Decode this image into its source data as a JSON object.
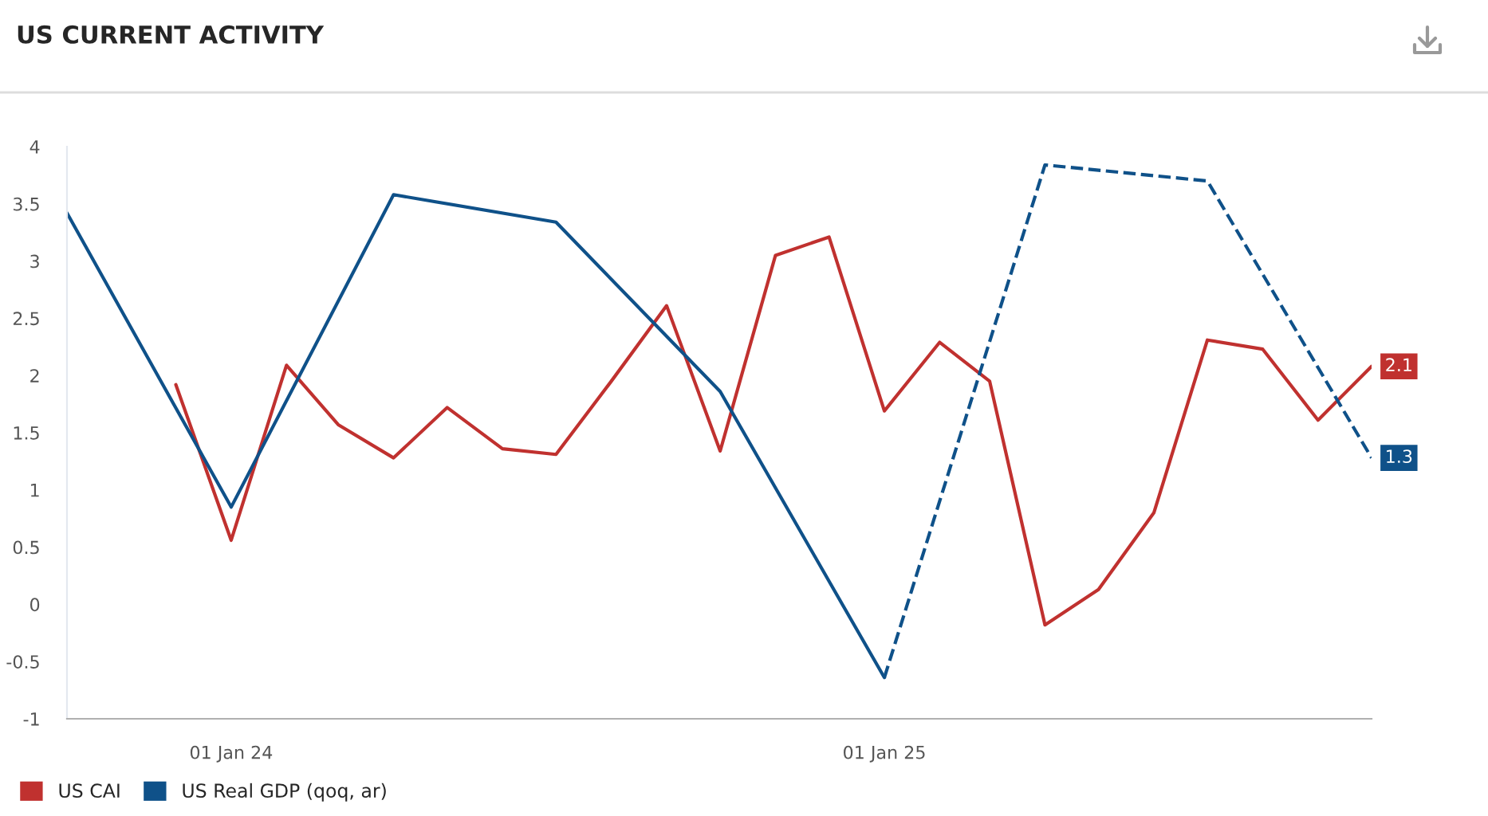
{
  "chart_data": {
    "type": "line",
    "title": "US CURRENT ACTIVITY",
    "series": [
      {
        "name": "US CAI",
        "color": "#c0312f",
        "line_style": "solid",
        "x": [
          "2023-12-01",
          "2024-01-01",
          "2024-02-01",
          "2024-03-01",
          "2024-04-01",
          "2024-05-01",
          "2024-06-01",
          "2024-07-01",
          "2024-08-01",
          "2024-09-01",
          "2024-10-01",
          "2024-11-01",
          "2024-12-01",
          "2025-01-01",
          "2025-02-01",
          "2025-03-01",
          "2025-04-01",
          "2025-05-01",
          "2025-06-01",
          "2025-07-01",
          "2025-08-01",
          "2025-09-01",
          "2025-10-01"
        ],
        "values": [
          1.92,
          0.56,
          2.09,
          1.57,
          1.28,
          1.72,
          1.36,
          1.31,
          1.95,
          2.61,
          1.34,
          3.05,
          3.21,
          1.69,
          2.29,
          1.95,
          -0.18,
          0.13,
          0.8,
          2.31,
          2.23,
          1.61,
          2.08
        ],
        "value_labels": [
          null,
          null,
          null,
          null,
          null,
          null,
          null,
          null,
          null,
          null,
          null,
          null,
          null,
          null,
          null,
          null,
          null,
          null,
          null,
          null,
          null,
          null,
          "2.1"
        ]
      },
      {
        "name": "US Real GDP (qoq, ar)",
        "color": "#0f5189",
        "line_style": "solid",
        "x": [
          "2023-10-01",
          "2024-01-01",
          "2024-04-01",
          "2024-07-01",
          "2024-10-01",
          "2025-01-01"
        ],
        "values": [
          3.42,
          0.85,
          3.58,
          3.34,
          1.86,
          -0.64
        ]
      },
      {
        "color": "#0f5189",
        "line_style": "dashed",
        "x": [
          "2025-01-01",
          "2025-04-01",
          "2025-07-01",
          "2025-10-01"
        ],
        "values": [
          -0.64,
          3.84,
          3.7,
          1.28
        ],
        "value_labels": [
          null,
          null,
          null,
          "1.3"
        ]
      }
    ],
    "xlim": [
      "2023-10-01",
      "2025-10-01"
    ],
    "xticks": [
      {
        "value": "2024-01-01",
        "label": "01 Jan 24"
      },
      {
        "value": "2025-01-01",
        "label": "01 Jan 25"
      }
    ],
    "ylim": [
      -1,
      4
    ],
    "yticks": [
      -1,
      -0.5,
      0,
      0.5,
      1,
      1.5,
      2,
      2.5,
      3,
      3.5,
      4
    ],
    "grid": false,
    "legend": "bottom left",
    "marker": "none"
  }
}
